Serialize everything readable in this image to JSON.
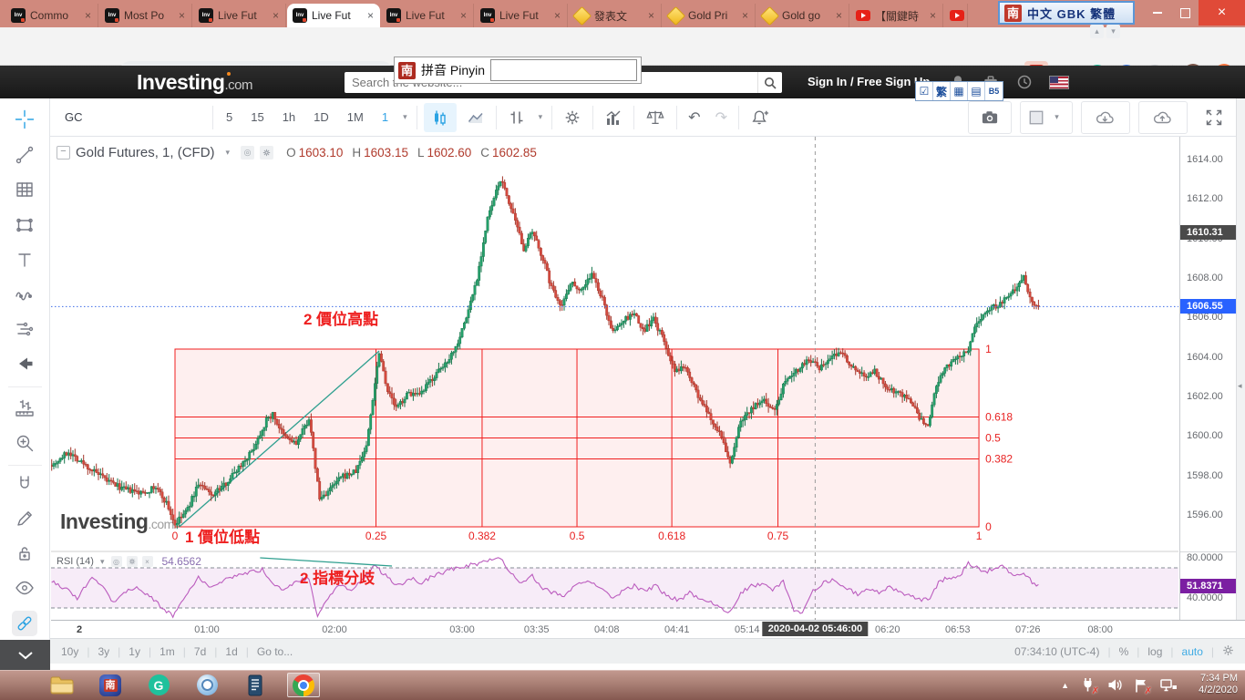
{
  "ui": {
    "close": "×",
    "caret": "▾",
    "back": "←",
    "forward": "→",
    "reload": "↻",
    "home": "⌂",
    "minus": "−",
    "circle": "◎",
    "tray_up": "▲",
    "scroll_left": "◂",
    "undo": "↶",
    "redo": "↷",
    "pane_up": "▴",
    "pane_down": "▾",
    "check": "☑",
    "kbd": "▦",
    "page": "▤",
    "chevron_down": "⌄"
  },
  "browser": {
    "tabs": [
      {
        "label": "Commo",
        "icon": "inv"
      },
      {
        "label": "Most Po",
        "icon": "inv"
      },
      {
        "label": "Live Fut",
        "icon": "inv"
      },
      {
        "label": "Live Fut",
        "icon": "inv",
        "active": true
      },
      {
        "label": "Live Fut",
        "icon": "inv"
      },
      {
        "label": "Live Fut",
        "icon": "inv"
      },
      {
        "label": "發表文",
        "icon": "gem"
      },
      {
        "label": "Gold Pri",
        "icon": "gem"
      },
      {
        "label": "Gold go",
        "icon": "gem"
      },
      {
        "label": "【關鍵時",
        "icon": "yt"
      },
      {
        "label": "",
        "icon": "yt"
      }
    ],
    "url": "investing.com/charts/futures-charts",
    "ime_candidate": {
      "badge": "南",
      "label": "拼音 Pinyin"
    },
    "ime_langbar": {
      "badge": "南",
      "label": "中文 GBK 繁體"
    },
    "ime_tools": {
      "trad": "繁",
      "b5": "B5"
    },
    "profile_initial": "J",
    "ext_g": "G",
    "ext_q": "Q",
    "pdf": "A"
  },
  "site": {
    "logo": "Investing",
    "logo_suffix": ".com",
    "search_placeholder": "Search the website...",
    "signin": "Sign In / Free Sign Up"
  },
  "toolbar": {
    "symbol": "GC",
    "intervals": [
      "5",
      "15",
      "1h",
      "1D",
      "1M",
      "1"
    ],
    "active": "1"
  },
  "legend": {
    "title": "Gold Futures, 1, (CFD)",
    "o": "O",
    "h": "H",
    "l": "L",
    "c": "C"
  },
  "annotations": {
    "price_high": "2 價位高點",
    "price_low": "1 價位低點",
    "divergence": "2 指標分歧"
  },
  "watermark": {
    "name": "Investing",
    "suffix": ".com"
  },
  "footer": {
    "ranges": [
      "10y",
      "3y",
      "1y",
      "1m",
      "7d",
      "1d"
    ],
    "goto": "Go to...",
    "clock": "07:34:10 (UTC-4)",
    "percent": "%",
    "log": "log",
    "auto": "auto"
  },
  "taskbar": {
    "time": "7:34 PM",
    "date": "4/2/2020",
    "nan_badge": "南"
  },
  "chart_data": {
    "type": "candlestick",
    "title": "Gold Futures, 1, (CFD)",
    "ohlc": {
      "open": 1603.1,
      "high": 1603.15,
      "low": 1602.6,
      "close": 1602.85
    },
    "last_price": 1606.55,
    "marked_price": 1610.31,
    "y_ticks": [
      1596,
      1598,
      1600,
      1602,
      1604,
      1606,
      1608,
      1610,
      1612,
      1614
    ],
    "x_ticks": [
      "2",
      "01:00",
      "02:00",
      "03:00",
      "03:35",
      "04:08",
      "04:41",
      "05:14",
      "06:20",
      "06:53",
      "07:26",
      "08:00"
    ],
    "x_badge": {
      "label": "2020-04-02 05:46:00",
      "minute": 346
    },
    "price_anchors": [
      [
        -12,
        1598.6
      ],
      [
        -5,
        1599.2
      ],
      [
        3,
        1598.5
      ],
      [
        12,
        1597.8
      ],
      [
        21,
        1597.3
      ],
      [
        29,
        1597.1
      ],
      [
        36,
        1597.4
      ],
      [
        41,
        1596.6
      ],
      [
        45,
        1595.5
      ],
      [
        51,
        1596.3
      ],
      [
        56,
        1597.6
      ],
      [
        62,
        1597.0
      ],
      [
        68,
        1597.5
      ],
      [
        74,
        1598.3
      ],
      [
        81,
        1599.2
      ],
      [
        88,
        1600.8
      ],
      [
        91,
        1601.1
      ],
      [
        96,
        1600.0
      ],
      [
        102,
        1599.6
      ],
      [
        108,
        1600.9
      ],
      [
        113,
        1596.8
      ],
      [
        118,
        1597.3
      ],
      [
        123,
        1597.9
      ],
      [
        130,
        1598.2
      ],
      [
        135,
        1599.5
      ],
      [
        141,
        1604.3
      ],
      [
        145,
        1602.3
      ],
      [
        149,
        1601.4
      ],
      [
        155,
        1602.2
      ],
      [
        160,
        1602.0
      ],
      [
        165,
        1602.8
      ],
      [
        171,
        1603.5
      ],
      [
        177,
        1604.5
      ],
      [
        182,
        1606.0
      ],
      [
        187,
        1608.0
      ],
      [
        192,
        1611.0
      ],
      [
        198,
        1613.0
      ],
      [
        201,
        1612.2
      ],
      [
        205,
        1610.8
      ],
      [
        209,
        1609.5
      ],
      [
        213,
        1610.3
      ],
      [
        218,
        1609.0
      ],
      [
        222,
        1607.5
      ],
      [
        227,
        1606.6
      ],
      [
        231,
        1607.8
      ],
      [
        236,
        1607.4
      ],
      [
        241,
        1608.2
      ],
      [
        246,
        1606.9
      ],
      [
        251,
        1605.2
      ],
      [
        255,
        1605.8
      ],
      [
        261,
        1606.2
      ],
      [
        265,
        1605.3
      ],
      [
        270,
        1605.9
      ],
      [
        275,
        1604.8
      ],
      [
        280,
        1603.2
      ],
      [
        285,
        1603.6
      ],
      [
        291,
        1602.0
      ],
      [
        296,
        1601.0
      ],
      [
        301,
        1600.2
      ],
      [
        306,
        1598.6
      ],
      [
        311,
        1600.8
      ],
      [
        316,
        1601.4
      ],
      [
        322,
        1601.8
      ],
      [
        327,
        1601.3
      ],
      [
        332,
        1602.9
      ],
      [
        338,
        1603.4
      ],
      [
        343,
        1603.9
      ],
      [
        348,
        1603.4
      ],
      [
        354,
        1604.0
      ],
      [
        358,
        1604.3
      ],
      [
        363,
        1603.6
      ],
      [
        369,
        1603.0
      ],
      [
        374,
        1603.3
      ],
      [
        379,
        1602.5
      ],
      [
        385,
        1602.2
      ],
      [
        390,
        1601.9
      ],
      [
        395,
        1600.9
      ],
      [
        399,
        1600.4
      ],
      [
        403,
        1602.6
      ],
      [
        408,
        1603.5
      ],
      [
        414,
        1604.0
      ],
      [
        418,
        1604.4
      ],
      [
        422,
        1605.8
      ],
      [
        426,
        1606.3
      ],
      [
        431,
        1606.6
      ],
      [
        435,
        1606.9
      ],
      [
        439,
        1607.3
      ],
      [
        444,
        1608.2
      ],
      [
        447,
        1607.0
      ],
      [
        450,
        1606.6
      ]
    ],
    "fibonacci": {
      "price_low": 1595.4,
      "price_high": 1604.4,
      "start_minute": 45,
      "end_minute": 423,
      "h_levels": [
        0,
        0.382,
        0.5,
        0.618,
        1
      ],
      "v_levels": [
        0,
        0.25,
        0.382,
        0.5,
        0.618,
        0.75,
        1
      ]
    },
    "trendline": {
      "from": [
        47,
        1595.4
      ],
      "to": [
        141,
        1604.3
      ]
    },
    "rsi": {
      "label": "RSI (14)",
      "legend_value": "54.6562",
      "last_value": 51.8371,
      "upper": 70,
      "lower": 30,
      "ticks": [
        80,
        40
      ],
      "anchors": [
        [
          -12,
          55
        ],
        [
          -5,
          48
        ],
        [
          -1,
          40
        ],
        [
          6,
          60
        ],
        [
          11,
          52
        ],
        [
          16,
          36
        ],
        [
          23,
          48
        ],
        [
          28,
          50
        ],
        [
          33,
          42
        ],
        [
          39,
          30
        ],
        [
          44,
          22
        ],
        [
          51,
          45
        ],
        [
          56,
          60
        ],
        [
          62,
          50
        ],
        [
          68,
          58
        ],
        [
          74,
          62
        ],
        [
          81,
          66
        ],
        [
          86,
          68
        ],
        [
          91,
          55
        ],
        [
          96,
          48
        ],
        [
          102,
          56
        ],
        [
          108,
          60
        ],
        [
          112,
          22
        ],
        [
          117,
          40
        ],
        [
          122,
          52
        ],
        [
          128,
          48
        ],
        [
          133,
          58
        ],
        [
          139,
          72
        ],
        [
          145,
          60
        ],
        [
          150,
          52
        ],
        [
          156,
          60
        ],
        [
          161,
          55
        ],
        [
          166,
          62
        ],
        [
          172,
          66
        ],
        [
          177,
          70
        ],
        [
          182,
          72
        ],
        [
          187,
          74
        ],
        [
          192,
          78
        ],
        [
          198,
          80
        ],
        [
          203,
          65
        ],
        [
          208,
          55
        ],
        [
          213,
          62
        ],
        [
          218,
          50
        ],
        [
          223,
          45
        ],
        [
          228,
          42
        ],
        [
          234,
          55
        ],
        [
          240,
          58
        ],
        [
          246,
          48
        ],
        [
          251,
          40
        ],
        [
          256,
          48
        ],
        [
          261,
          52
        ],
        [
          266,
          46
        ],
        [
          271,
          52
        ],
        [
          276,
          42
        ],
        [
          282,
          38
        ],
        [
          287,
          45
        ],
        [
          292,
          38
        ],
        [
          297,
          35
        ],
        [
          302,
          30
        ],
        [
          306,
          26
        ],
        [
          311,
          45
        ],
        [
          316,
          52
        ],
        [
          321,
          54
        ],
        [
          326,
          48
        ],
        [
          331,
          56
        ],
        [
          336,
          28
        ],
        [
          340,
          26
        ],
        [
          345,
          48
        ],
        [
          350,
          55
        ],
        [
          355,
          58
        ],
        [
          360,
          50
        ],
        [
          366,
          44
        ],
        [
          371,
          50
        ],
        [
          376,
          46
        ],
        [
          381,
          50
        ],
        [
          386,
          46
        ],
        [
          391,
          42
        ],
        [
          396,
          38
        ],
        [
          400,
          40
        ],
        [
          404,
          55
        ],
        [
          408,
          60
        ],
        [
          414,
          62
        ],
        [
          418,
          75
        ],
        [
          422,
          70
        ],
        [
          426,
          66
        ],
        [
          431,
          70
        ],
        [
          434,
          72
        ],
        [
          439,
          62
        ],
        [
          444,
          66
        ],
        [
          448,
          56
        ],
        [
          451,
          52
        ]
      ],
      "divergence": {
        "from": [
          85,
          80
        ],
        "to": [
          147,
          71.8
        ]
      }
    }
  }
}
